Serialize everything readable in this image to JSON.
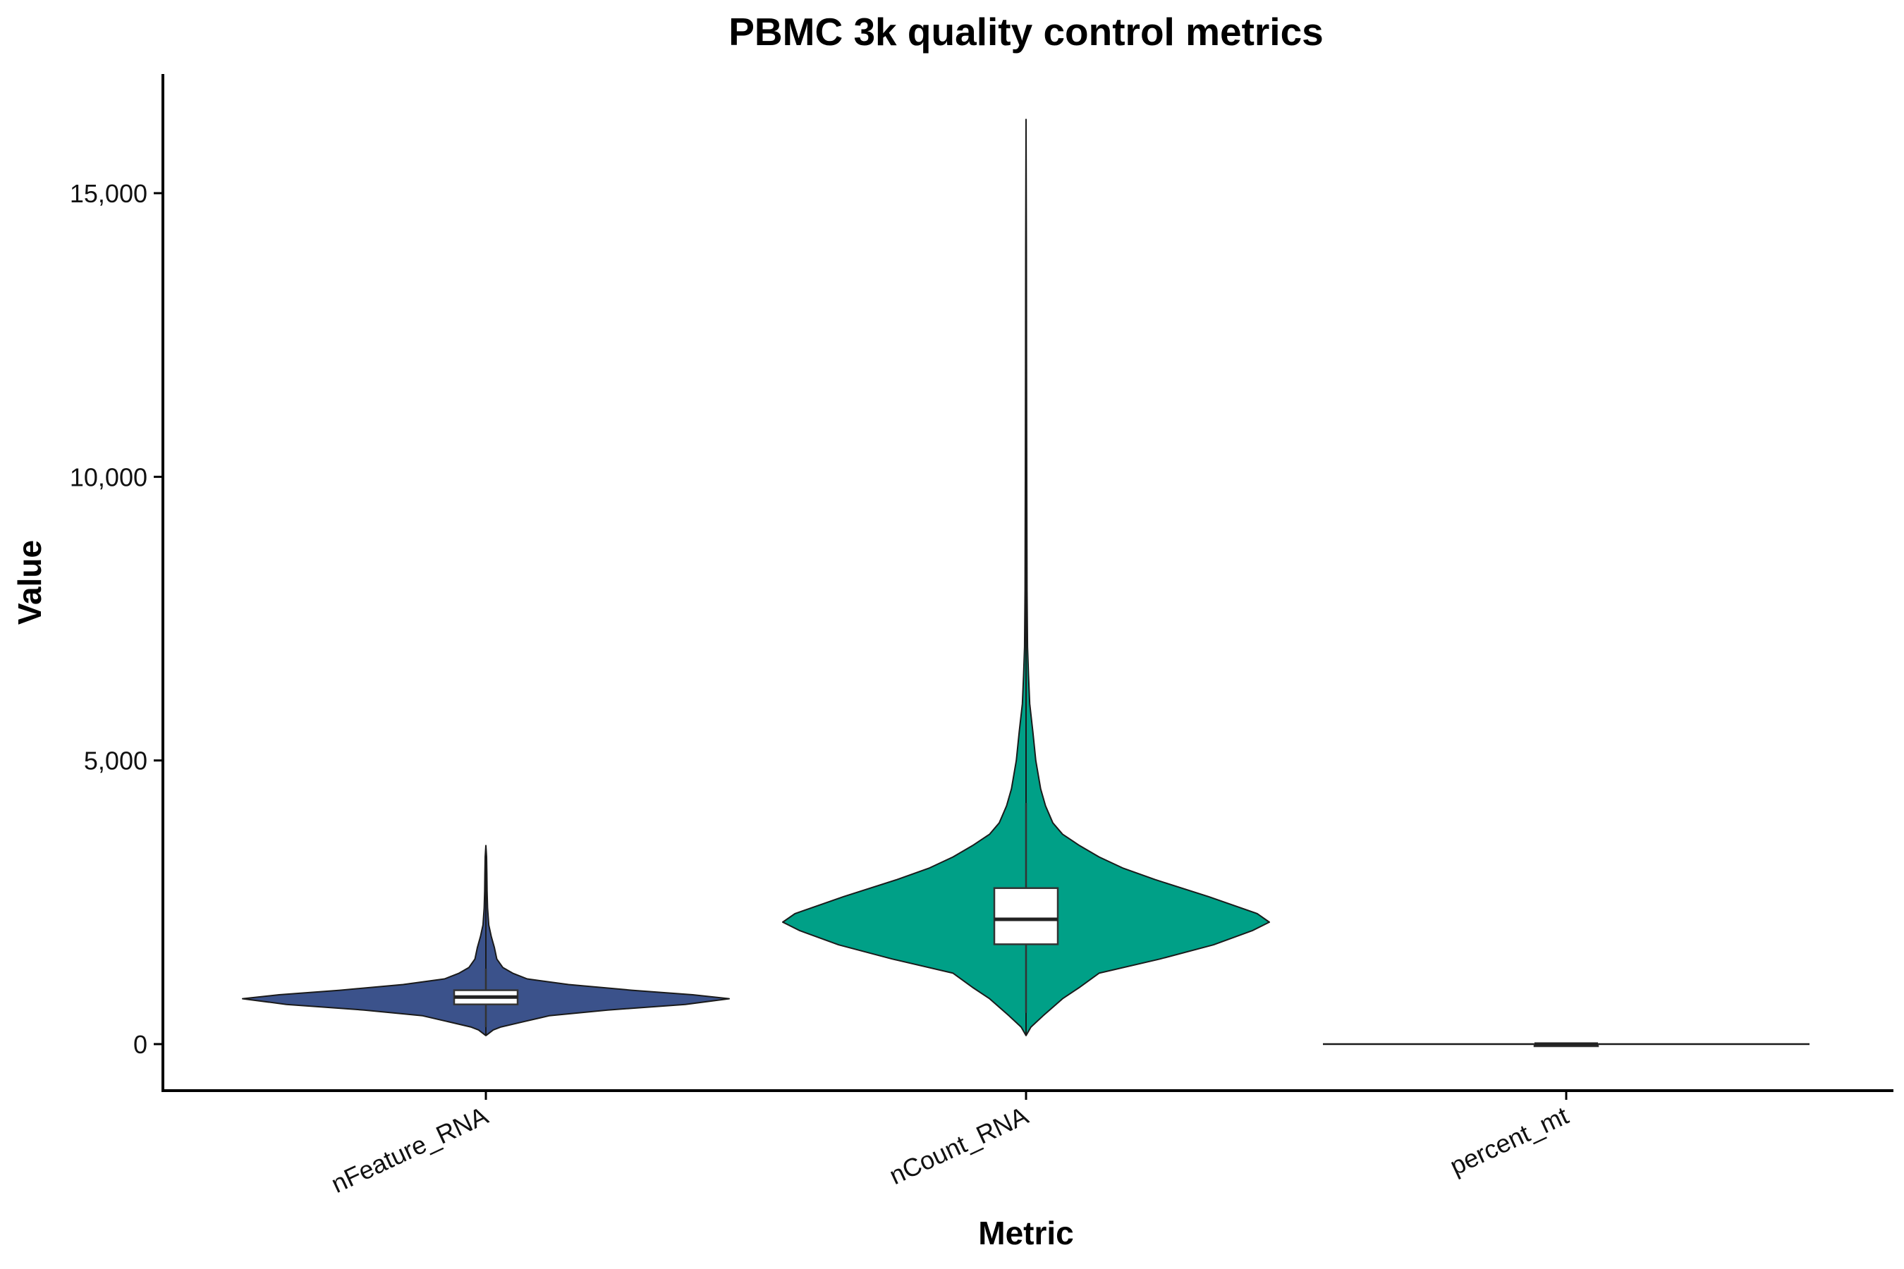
{
  "chart_data": {
    "type": "violin",
    "title": "PBMC 3k quality control metrics",
    "xlabel": "Metric",
    "ylabel": "Value",
    "categories": [
      "nFeature_RNA",
      "nCount_RNA",
      "percent_mt"
    ],
    "ylim": [
      -800,
      17000
    ],
    "yticks": [
      0,
      5000,
      10000,
      15000
    ],
    "ytick_labels": [
      "0",
      "5,000",
      "10,000",
      "15,000"
    ],
    "grid": false,
    "legend": "none",
    "colors": [
      "#3B528B",
      "#00A087",
      "#FFFFFF"
    ],
    "series": [
      {
        "category": "nFeature_RNA",
        "min": 150,
        "max": 3500,
        "box": {
          "q1": 700,
          "median": 830,
          "q3": 950,
          "whisker_low": 300,
          "whisker_high": 1330
        },
        "density": [
          [
            150,
            0.0
          ],
          [
            250,
            0.03
          ],
          [
            300,
            0.06
          ],
          [
            400,
            0.16
          ],
          [
            500,
            0.26
          ],
          [
            600,
            0.5
          ],
          [
            700,
            0.82
          ],
          [
            800,
            1.0
          ],
          [
            870,
            0.85
          ],
          [
            950,
            0.6
          ],
          [
            1050,
            0.34
          ],
          [
            1150,
            0.17
          ],
          [
            1250,
            0.11
          ],
          [
            1350,
            0.07
          ],
          [
            1500,
            0.045
          ],
          [
            1700,
            0.035
          ],
          [
            1900,
            0.022
          ],
          [
            2100,
            0.012
          ],
          [
            2400,
            0.007
          ],
          [
            2700,
            0.005
          ],
          [
            3000,
            0.004
          ],
          [
            3300,
            0.003
          ],
          [
            3500,
            0.0
          ]
        ]
      },
      {
        "category": "nCount_RNA",
        "min": 150,
        "max": 16300,
        "box": {
          "q1": 1760,
          "median": 2200,
          "q3": 2750,
          "whisker_low": 550,
          "whisker_high": 4250
        },
        "density": [
          [
            150,
            0.0
          ],
          [
            300,
            0.02
          ],
          [
            500,
            0.07
          ],
          [
            800,
            0.15
          ],
          [
            1000,
            0.22
          ],
          [
            1250,
            0.3
          ],
          [
            1500,
            0.55
          ],
          [
            1750,
            0.77
          ],
          [
            2000,
            0.93
          ],
          [
            2150,
            1.0
          ],
          [
            2300,
            0.95
          ],
          [
            2600,
            0.75
          ],
          [
            2900,
            0.53
          ],
          [
            3100,
            0.4
          ],
          [
            3300,
            0.3
          ],
          [
            3500,
            0.22
          ],
          [
            3700,
            0.15
          ],
          [
            3900,
            0.11
          ],
          [
            4200,
            0.08
          ],
          [
            4500,
            0.06
          ],
          [
            5000,
            0.04
          ],
          [
            5500,
            0.028
          ],
          [
            6000,
            0.015
          ],
          [
            6500,
            0.01
          ],
          [
            7000,
            0.006
          ],
          [
            8000,
            0.004
          ],
          [
            10000,
            0.003
          ],
          [
            12000,
            0.002
          ],
          [
            14000,
            0.0015
          ],
          [
            16300,
            0.0
          ]
        ]
      },
      {
        "category": "percent_mt",
        "min": 0,
        "max": 0,
        "box": {
          "q1": 0,
          "median": 0,
          "q3": 0,
          "whisker_low": 0,
          "whisker_high": 0
        }
      }
    ]
  }
}
